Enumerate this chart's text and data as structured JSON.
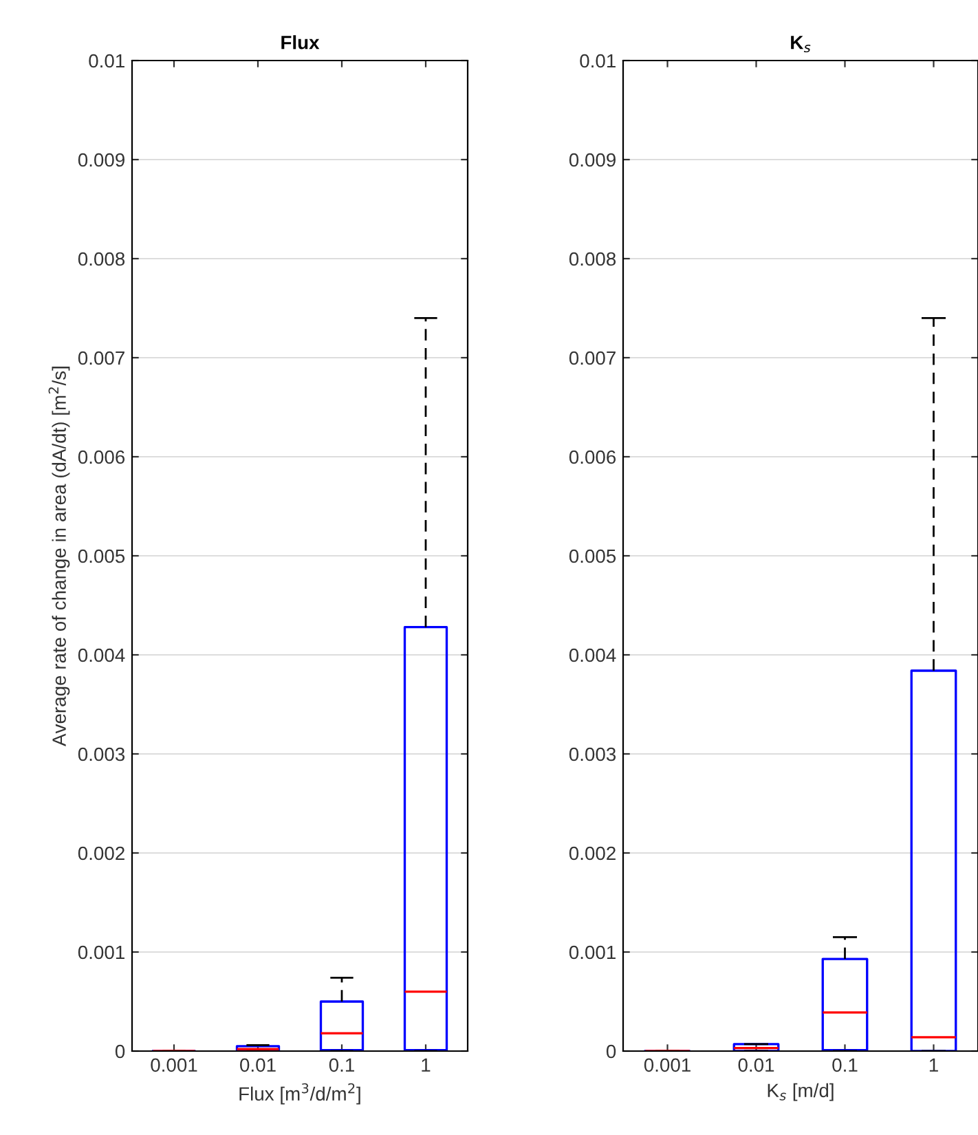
{
  "chart_data": [
    {
      "type": "box",
      "title": "Flux",
      "xlabel": "Flux [m$^{3}$/d/m$^{2}$]",
      "ylabel": "Average rate of change in area (dA/dt) [m$^{2}$/s]",
      "categories": [
        "0.001",
        "0.01",
        "0.1",
        "1"
      ],
      "ylim": [
        0,
        0.01
      ],
      "yticks": [
        0,
        0.001,
        0.002,
        0.003,
        0.004,
        0.005,
        0.006,
        0.007,
        0.008,
        0.009,
        0.01
      ],
      "grid": "y",
      "color": "#0000ff",
      "boxes": [
        {
          "low": 0,
          "q1": 0,
          "median": 0,
          "q3": 0,
          "high": 0
        },
        {
          "low": 0,
          "q1": 0,
          "median": 2e-05,
          "q3": 5e-05,
          "high": 6e-05
        },
        {
          "low": 0,
          "q1": 1e-05,
          "median": 0.00018,
          "q3": 0.0005,
          "high": 0.00074
        },
        {
          "low": 0,
          "q1": 1e-05,
          "median": 0.0006,
          "q3": 0.00428,
          "high": 0.0074
        }
      ]
    },
    {
      "type": "box",
      "title": "K$_{s}$",
      "xlabel": "K$_{s}$ [m/d]",
      "categories": [
        "0.001",
        "0.01",
        "0.1",
        "1"
      ],
      "ylim": [
        0,
        0.01
      ],
      "yticks": [
        0,
        0.001,
        0.002,
        0.003,
        0.004,
        0.005,
        0.006,
        0.007,
        0.008,
        0.009,
        0.01
      ],
      "grid": "y",
      "color": "#0000ff",
      "boxes": [
        {
          "low": 0,
          "q1": 0,
          "median": 0,
          "q3": 0,
          "high": 0
        },
        {
          "low": 0,
          "q1": 0,
          "median": 3e-05,
          "q3": 7e-05,
          "high": 7e-05
        },
        {
          "low": 0,
          "q1": 1e-05,
          "median": 0.00039,
          "q3": 0.00093,
          "high": 0.00115
        },
        {
          "low": 0,
          "q1": 0,
          "median": 0.00014,
          "q3": 0.00384,
          "high": 0.0074
        }
      ]
    }
  ]
}
